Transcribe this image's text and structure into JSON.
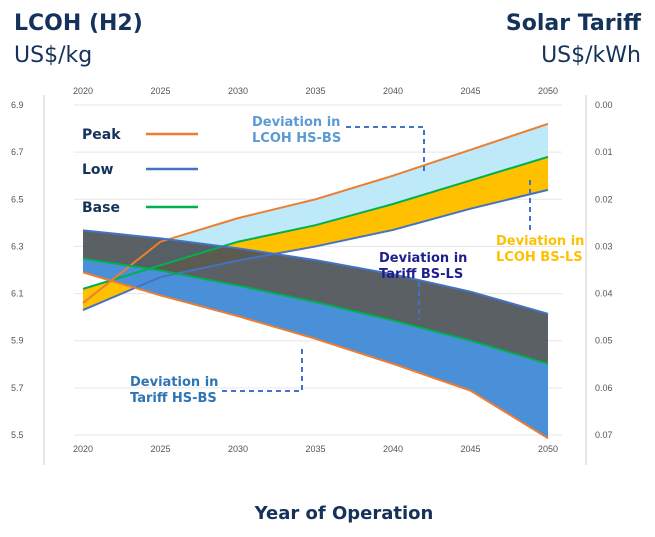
{
  "chart_data": {
    "type": "area",
    "left_title": "LCOH (H2)",
    "left_unit": "US$/kg",
    "right_title": "Solar Tariff",
    "right_unit": "US$/kWh",
    "xlabel": "Year of Operation",
    "x": [
      2020,
      2025,
      2030,
      2035,
      2040,
      2045,
      2050
    ],
    "x_tick_labels": [
      "2020",
      "2025",
      "2030",
      "2035",
      "2040",
      "2045",
      "2050"
    ],
    "y_left_ticks": [
      "5.5",
      "5.7",
      "5.9",
      "6.1",
      "6.3",
      "6.5",
      "6.7",
      "6.9"
    ],
    "y_left_range": [
      5.5,
      6.9
    ],
    "y_right_ticks": [
      "0.00",
      "0.01",
      "0.02",
      "0.03",
      "0.04",
      "0.05",
      "0.06",
      "0.07"
    ],
    "y_right_range": [
      0.0,
      0.07
    ],
    "y_right_inverted": true,
    "lcoh_series": [
      {
        "name": "Peak",
        "axis": "left",
        "values": [
          6.06,
          6.32,
          6.42,
          6.5,
          6.6,
          6.71,
          6.82
        ]
      },
      {
        "name": "Base",
        "axis": "left",
        "values": [
          6.12,
          6.22,
          6.32,
          6.39,
          6.48,
          6.58,
          6.68
        ]
      },
      {
        "name": "Low",
        "axis": "left",
        "values": [
          6.03,
          6.17,
          6.24,
          6.3,
          6.37,
          6.46,
          6.54
        ]
      }
    ],
    "tariff_series": [
      {
        "name": "Peak",
        "axis": "right",
        "values": [
          0.0355,
          0.0404,
          0.0448,
          0.0496,
          0.0549,
          0.0606,
          0.0707
        ]
      },
      {
        "name": "Base",
        "axis": "right",
        "values": [
          0.0326,
          0.0351,
          0.0383,
          0.0418,
          0.0457,
          0.05,
          0.0549
        ]
      },
      {
        "name": "Low",
        "axis": "right",
        "values": [
          0.0266,
          0.0283,
          0.0304,
          0.0329,
          0.0359,
          0.0396,
          0.0443
        ]
      }
    ],
    "legend": [
      {
        "label": "Peak",
        "color": "#ed7d31"
      },
      {
        "label": "Low",
        "color": "#4472c4"
      },
      {
        "label": "Base",
        "color": "#00b050"
      }
    ],
    "annotations": [
      {
        "id": "lcoh-hs-bs",
        "lines": [
          "Deviation in",
          "LCOH HS-BS"
        ],
        "color": "#5b9bd5"
      },
      {
        "id": "lcoh-bs-ls",
        "lines": [
          "Deviation in",
          "LCOH BS-LS"
        ],
        "color": "#ffc000"
      },
      {
        "id": "tariff-bs-ls",
        "lines": [
          "Deviation in",
          "Tariff BS-LS"
        ],
        "color": "#1f1f8c"
      },
      {
        "id": "tariff-hs-bs",
        "lines": [
          "Deviation in",
          "Tariff HS-BS"
        ],
        "color": "#2e75b6"
      }
    ],
    "fills": {
      "lcoh_hs_bs": "#bde9f8",
      "lcoh_bs_ls": "#ffc000",
      "tariff_bs_ls": "#4d5258",
      "tariff_hs_bs": "#4a90d9"
    },
    "colors": {
      "peak": "#ed7d31",
      "base": "#00b050",
      "low": "#4472c4",
      "header": "#14325a",
      "leader": "#4472c4",
      "grid": "#e6e6e6"
    }
  }
}
